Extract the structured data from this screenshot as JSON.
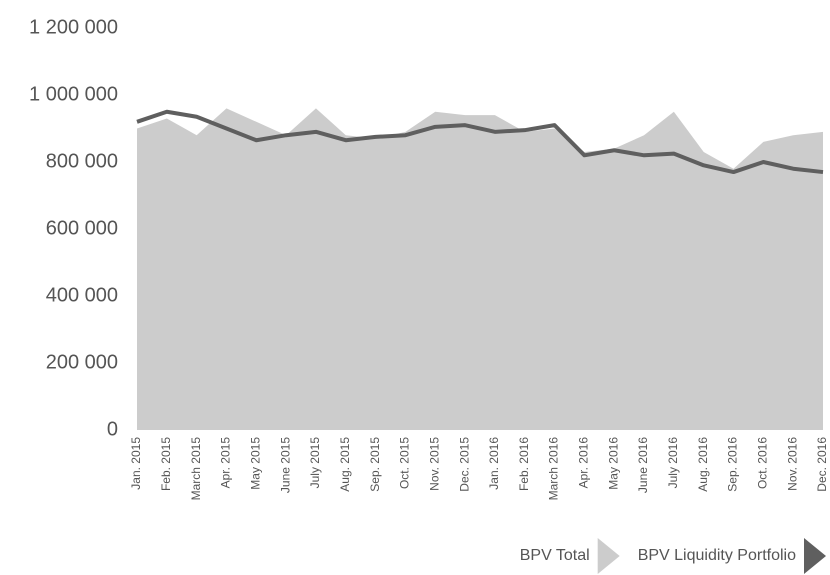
{
  "chart_data": {
    "type": "area_line",
    "categories": [
      "Jan. 2015",
      "Feb. 2015",
      "March 2015",
      "Apr. 2015",
      "May 2015",
      "June 2015",
      "July 2015",
      "Aug. 2015",
      "Sep. 2015",
      "Oct. 2015",
      "Nov. 2015",
      "Dec. 2015",
      "Jan. 2016",
      "Feb. 2016",
      "March 2016",
      "Apr. 2016",
      "May 2016",
      "June 2016",
      "July 2016",
      "Aug. 2016",
      "Sep. 2016",
      "Oct. 2016",
      "Nov. 2016",
      "Dec. 2016"
    ],
    "series": [
      {
        "name": "BPV Total",
        "color": "#cccccc",
        "kind": "area",
        "values": [
          900000,
          930000,
          880000,
          960000,
          920000,
          880000,
          960000,
          880000,
          870000,
          890000,
          950000,
          940000,
          940000,
          890000,
          900000,
          830000,
          840000,
          880000,
          950000,
          830000,
          780000,
          860000,
          880000,
          890000
        ]
      },
      {
        "name": "BPV Liquidity Portfolio",
        "color": "#5f5f5f",
        "kind": "line",
        "values": [
          920000,
          950000,
          935000,
          900000,
          865000,
          880000,
          890000,
          865000,
          875000,
          880000,
          905000,
          910000,
          890000,
          895000,
          910000,
          820000,
          835000,
          820000,
          825000,
          790000,
          770000,
          800000,
          780000,
          770000
        ]
      }
    ],
    "ylim": [
      0,
      1200000
    ],
    "yticks": [
      0,
      {
        "value": 200000,
        "label": "200 000"
      },
      {
        "value": 400000,
        "label": "400 000"
      },
      {
        "value": 600000,
        "label": "600 000"
      },
      {
        "value": 800000,
        "label": "800 000"
      },
      {
        "value": 1000000,
        "label": "1 000 000"
      },
      {
        "value": 1200000,
        "label": "1 200 000"
      }
    ],
    "legend": "bottom-right"
  }
}
